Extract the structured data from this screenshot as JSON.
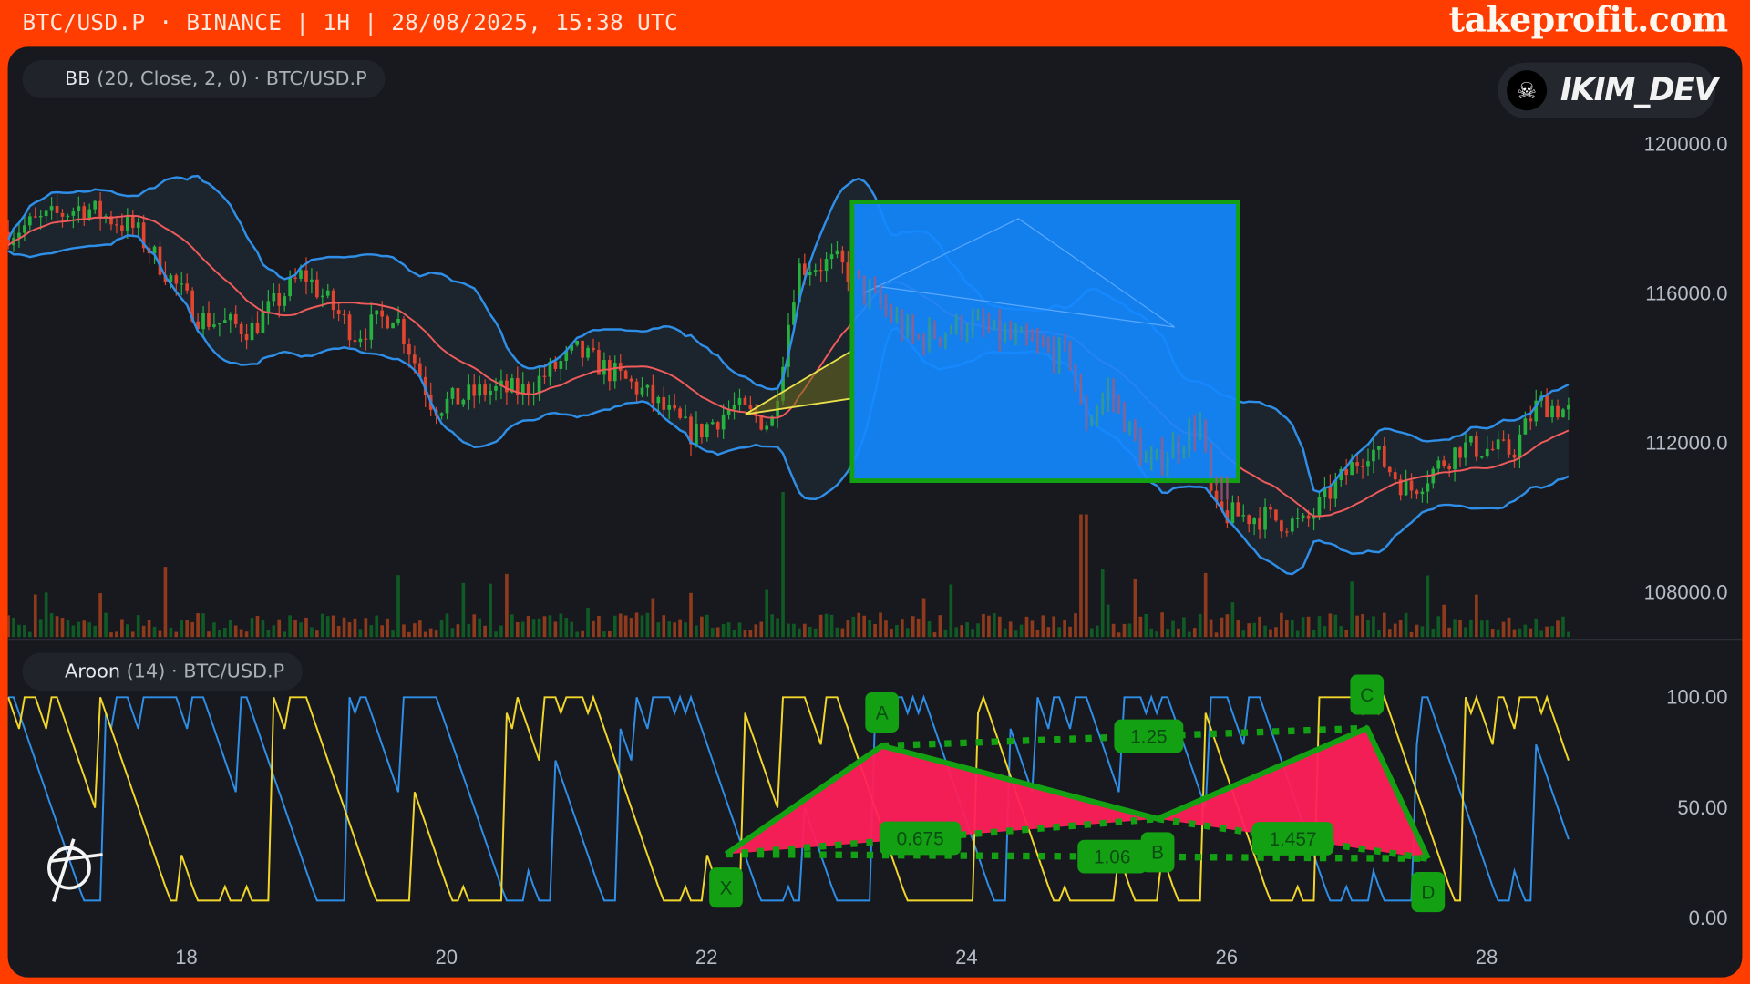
{
  "header": {
    "title": "BTC/USD.P · BINANCE | 1H | 28/08/2025, 15:38 UTC",
    "brand": "takeprofit.com"
  },
  "badge": {
    "username": "IKIM_DEV",
    "avatar_icon": "bull-skull-icon"
  },
  "legends": {
    "price": {
      "name": "BB",
      "params": "(20, Close, 2, 0)",
      "symbol": "· BTC/USD.P"
    },
    "aroon": {
      "name": "Aroon",
      "params": "(14)",
      "symbol": "· BTC/USD.P"
    }
  },
  "colors": {
    "frame": "#ff3d00",
    "bg": "#17191e",
    "up": "#27b13f",
    "down": "#e2452f",
    "bb_mid": "#ef5b5b",
    "bb_band": "#2f8fe8",
    "aroon_up": "#f2d72a",
    "aroon_down": "#2f8fe8",
    "pattern_fill": "#ff1f5a",
    "pattern_line": "#13a013",
    "box_fill": "#1388ff"
  },
  "chart_data": [
    {
      "type": "candlestick",
      "timeframe": "1H",
      "indicator": "Bollinger Bands (20, Close, 2, 0)",
      "y_ticks": [
        "120000.0",
        "116000.0",
        "112000.0",
        "108000.0"
      ],
      "y_tick_values": [
        120000,
        116000,
        112000,
        108000
      ],
      "x_ticks": [
        "18",
        "20",
        "22",
        "24",
        "26",
        "28"
      ],
      "x_tick_days": [
        18,
        20,
        22,
        24,
        26,
        28
      ],
      "approx_close_path": [
        [
          16.63,
          117640
        ],
        [
          17.2,
          118330
        ],
        [
          17.6,
          117730
        ],
        [
          18.1,
          115340
        ],
        [
          18.5,
          115040
        ],
        [
          18.9,
          116540
        ],
        [
          19.3,
          114900
        ],
        [
          19.6,
          115500
        ],
        [
          19.9,
          112960
        ],
        [
          20.3,
          113400
        ],
        [
          20.6,
          113400
        ],
        [
          21.0,
          114450
        ],
        [
          21.5,
          113400
        ],
        [
          21.9,
          112200
        ],
        [
          22.2,
          112960
        ],
        [
          22.5,
          112500
        ],
        [
          22.7,
          116690
        ],
        [
          23.0,
          116840
        ],
        [
          23.3,
          115800
        ],
        [
          23.6,
          114750
        ],
        [
          24.0,
          115200
        ],
        [
          24.5,
          114600
        ],
        [
          24.8,
          114300
        ],
        [
          24.9,
          112500
        ],
        [
          25.1,
          113400
        ],
        [
          25.4,
          111300
        ],
        [
          25.8,
          112500
        ],
        [
          25.9,
          110100
        ],
        [
          26.3,
          110000
        ],
        [
          26.6,
          109800
        ],
        [
          26.8,
          110700
        ],
        [
          27.1,
          111900
        ],
        [
          27.4,
          110700
        ],
        [
          27.8,
          111900
        ],
        [
          28.2,
          111760
        ],
        [
          28.4,
          113100
        ],
        [
          28.65,
          112800
        ]
      ],
      "rectangle": {
        "day_from": 23.12,
        "day_to": 26.09,
        "price_top": 118450,
        "price_bottom": 110990
      },
      "triangle": {
        "apex": [
          22.3,
          112770
        ],
        "top": [
          23.12,
          114470
        ],
        "bottom": [
          23.12,
          113190
        ]
      },
      "volume": "shown"
    },
    {
      "type": "line",
      "indicator": "Aroon (14)",
      "y_ticks": [
        "100.00",
        "50.00",
        "0.00"
      ],
      "y_tick_values": [
        100,
        50,
        0
      ],
      "ylim": [
        0,
        100
      ],
      "harmonic_pattern": {
        "points": [
          {
            "label": "X",
            "day": 22.15,
            "value": 29
          },
          {
            "label": "A",
            "day": 23.35,
            "value": 78
          },
          {
            "label": "B",
            "day": 25.47,
            "value": 45
          },
          {
            "label": "C",
            "day": 27.08,
            "value": 86
          },
          {
            "label": "D",
            "day": 27.55,
            "value": 27
          }
        ],
        "ratios": [
          {
            "label": "1.25",
            "from": "A",
            "to": "C"
          },
          {
            "label": "0.675",
            "from": "X",
            "to": "B"
          },
          {
            "label": "1.06",
            "from": "X",
            "to": "D"
          },
          {
            "label": "1.457",
            "from": "B",
            "to": "D"
          }
        ]
      }
    }
  ]
}
